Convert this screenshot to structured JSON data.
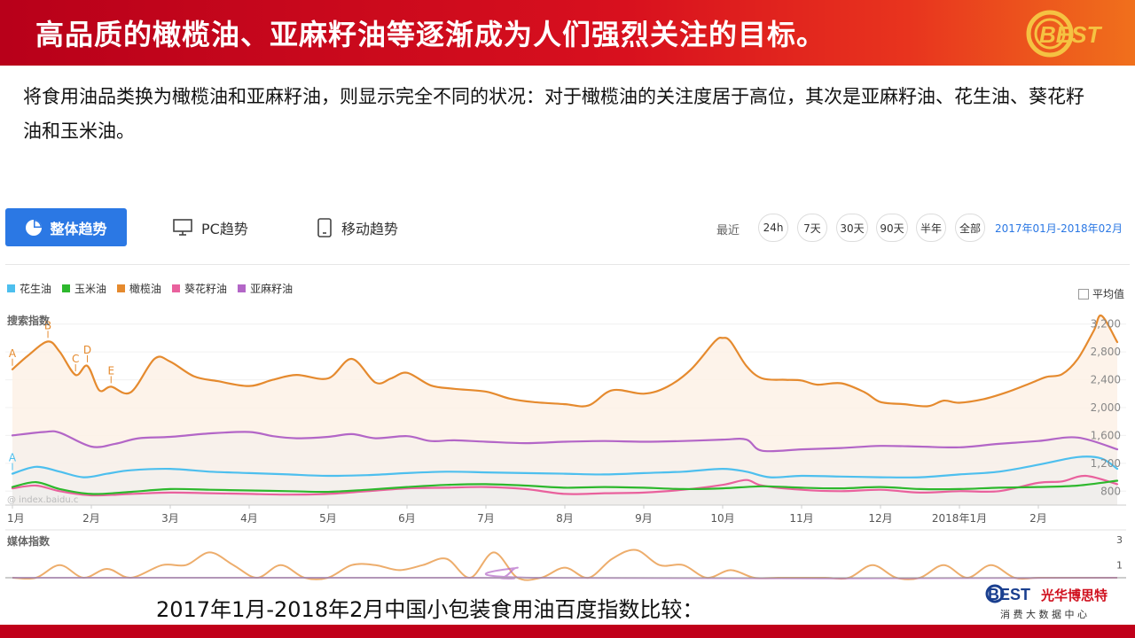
{
  "header": {
    "title": "高品质的橄榄油、亚麻籽油等逐渐成为人们强烈关注的目标。",
    "logo_text": "BEST"
  },
  "intro": {
    "text": "将食用油品类换为橄榄油和亚麻籽油，则显示完全不同的状况：对于橄榄油的关注度居于高位，其次是亚麻籽油、花生油、葵花籽油和玉米油。"
  },
  "tabs": {
    "overall": "整体趋势",
    "pc": "PC趋势",
    "mobile": "移动趋势"
  },
  "range": {
    "label": "最近",
    "options": [
      "24h",
      "7天",
      "30天",
      "90天",
      "半年",
      "全部"
    ],
    "date_range": "2017年01月-2018年02月"
  },
  "avg_toggle": "平均值",
  "caption": "2017年1月-2018年2月中国小包装食用油百度指数比较：",
  "footer": {
    "logo_text": "BEST",
    "company_name": "光华博思特",
    "company_sub": "消 费 大 数 据 中 心"
  },
  "colors": {
    "peanut": "#4dbfee",
    "corn": "#2db82d",
    "olive": "#e58a2e",
    "sunflower": "#e9619d",
    "linseed": "#b366c7",
    "accent": "#2b78e4"
  },
  "chart_data": {
    "type": "line",
    "main_panel_label": "搜索指数",
    "media_panel_label": "媒体指数",
    "watermark": "@ index.baidu.c",
    "x_labels": [
      "1月",
      "2月",
      "3月",
      "4月",
      "5月",
      "6月",
      "7月",
      "8月",
      "9月",
      "10月",
      "11月",
      "12月",
      "2018年1月",
      "2月"
    ],
    "ylim": [
      600,
      3400
    ],
    "yticks": [
      800,
      1200,
      1600,
      2000,
      2400,
      2800,
      3200
    ],
    "media_ylim": [
      0,
      3.5
    ],
    "media_yticks": [
      1,
      3
    ],
    "annotations": [
      {
        "label": "A",
        "series": "橄榄油",
        "x": 0.0
      },
      {
        "label": "B",
        "series": "橄榄油",
        "x": 0.45
      },
      {
        "label": "C",
        "series": "橄榄油",
        "x": 0.8
      },
      {
        "label": "D",
        "series": "橄榄油",
        "x": 0.95
      },
      {
        "label": "E",
        "series": "橄榄油",
        "x": 1.25
      },
      {
        "label": "A",
        "series": "花生油",
        "x": 0.0
      }
    ],
    "series": [
      {
        "name": "花生油",
        "color_key": "peanut",
        "x": [
          0,
          0.3,
          0.6,
          0.9,
          1.2,
          1.5,
          2,
          2.5,
          3,
          3.5,
          4,
          4.5,
          5,
          5.5,
          6,
          6.5,
          7,
          7.5,
          8,
          8.5,
          9,
          9.3,
          9.6,
          10,
          10.5,
          11,
          11.5,
          12,
          12.5,
          13,
          13.5,
          13.8,
          14
        ],
        "values": [
          1050,
          1150,
          1080,
          1000,
          1050,
          1100,
          1120,
          1080,
          1060,
          1040,
          1020,
          1030,
          1060,
          1080,
          1070,
          1060,
          1050,
          1040,
          1060,
          1080,
          1120,
          1080,
          1000,
          1020,
          1010,
          1000,
          1000,
          1040,
          1080,
          1180,
          1290,
          1270,
          1120
        ]
      },
      {
        "name": "玉米油",
        "color_key": "corn",
        "x": [
          0,
          0.3,
          0.6,
          1,
          1.5,
          2,
          2.5,
          3,
          3.5,
          4,
          4.5,
          5,
          5.5,
          6,
          6.5,
          7,
          7.5,
          8,
          8.5,
          9,
          9.5,
          10,
          10.5,
          11,
          11.5,
          12,
          12.5,
          13,
          13.5,
          14
        ],
        "values": [
          860,
          930,
          830,
          760,
          790,
          830,
          820,
          810,
          800,
          790,
          820,
          860,
          890,
          900,
          880,
          850,
          860,
          850,
          830,
          840,
          870,
          850,
          840,
          860,
          830,
          830,
          850,
          860,
          880,
          950
        ]
      },
      {
        "name": "橄榄油",
        "color_key": "olive",
        "x": [
          0,
          0.2,
          0.45,
          0.6,
          0.8,
          0.95,
          1.1,
          1.25,
          1.5,
          1.8,
          2.0,
          2.3,
          2.6,
          3.0,
          3.3,
          3.6,
          4.0,
          4.3,
          4.6,
          4.8,
          5.0,
          5.3,
          5.6,
          6.0,
          6.3,
          6.6,
          7.0,
          7.3,
          7.6,
          8.0,
          8.3,
          8.6,
          8.9,
          9.0,
          9.1,
          9.3,
          9.5,
          9.8,
          10.0,
          10.2,
          10.5,
          10.8,
          11.0,
          11.3,
          11.6,
          11.8,
          12.0,
          12.3,
          12.6,
          12.9,
          13.1,
          13.3,
          13.5,
          13.7,
          13.8,
          14.0
        ],
        "values": [
          2550,
          2750,
          2950,
          2800,
          2470,
          2600,
          2250,
          2300,
          2220,
          2700,
          2660,
          2450,
          2380,
          2310,
          2400,
          2470,
          2420,
          2700,
          2360,
          2420,
          2500,
          2320,
          2270,
          2230,
          2130,
          2080,
          2050,
          2030,
          2250,
          2200,
          2300,
          2550,
          2950,
          3000,
          2950,
          2600,
          2420,
          2400,
          2390,
          2330,
          2350,
          2220,
          2080,
          2050,
          2020,
          2100,
          2070,
          2120,
          2220,
          2350,
          2440,
          2480,
          2700,
          3100,
          3320,
          2940
        ]
      },
      {
        "name": "葵花籽油",
        "color_key": "sunflower",
        "x": [
          0,
          0.3,
          0.6,
          1,
          1.5,
          2,
          2.5,
          3,
          3.5,
          4,
          4.5,
          5,
          5.5,
          6,
          6.5,
          7,
          7.5,
          8,
          8.5,
          9,
          9.3,
          9.5,
          10,
          10.5,
          11,
          11.5,
          12,
          12.5,
          13,
          13.3,
          13.6,
          14
        ],
        "values": [
          840,
          880,
          800,
          740,
          760,
          780,
          770,
          760,
          750,
          760,
          800,
          840,
          850,
          860,
          830,
          760,
          770,
          780,
          820,
          890,
          960,
          880,
          820,
          800,
          820,
          780,
          800,
          800,
          920,
          940,
          1020,
          900
        ]
      },
      {
        "name": "亚麻籽油",
        "color_key": "linseed",
        "x": [
          0,
          0.4,
          0.6,
          1,
          1.3,
          1.6,
          2,
          2.5,
          3,
          3.3,
          3.6,
          4,
          4.3,
          4.6,
          5,
          5.3,
          5.6,
          6,
          6.5,
          7,
          7.5,
          8,
          8.5,
          9,
          9.3,
          9.5,
          10,
          10.5,
          11,
          11.5,
          12,
          12.5,
          13,
          13.5,
          14
        ],
        "values": [
          1600,
          1650,
          1640,
          1440,
          1480,
          1560,
          1580,
          1630,
          1650,
          1590,
          1560,
          1580,
          1620,
          1560,
          1590,
          1520,
          1530,
          1510,
          1490,
          1510,
          1520,
          1510,
          1520,
          1540,
          1540,
          1380,
          1400,
          1420,
          1450,
          1440,
          1430,
          1480,
          1520,
          1570,
          1400
        ]
      }
    ],
    "media_series": [
      {
        "name": "橄榄油",
        "color_key": "olive",
        "x": [
          0,
          0.3,
          0.6,
          0.9,
          1.2,
          1.5,
          1.9,
          2.2,
          2.5,
          2.8,
          3.1,
          3.4,
          3.7,
          4.0,
          4.3,
          4.6,
          4.9,
          5.2,
          5.5,
          5.8,
          6.1,
          6.4,
          6.7,
          7.0,
          7.3,
          7.6,
          7.9,
          8.2,
          8.5,
          8.8,
          9.1,
          9.4,
          9.7,
          10.0,
          10.3,
          10.6,
          10.9,
          11.2,
          11.5,
          11.8,
          12.1,
          12.4,
          12.7,
          13.0,
          13.3,
          13.6,
          14.0
        ],
        "values": [
          0,
          0,
          1,
          0,
          0.7,
          0,
          1,
          1,
          2,
          1,
          0,
          1,
          0,
          0,
          1,
          1,
          0.6,
          1,
          1.5,
          0,
          2,
          0,
          0,
          0.8,
          0,
          1.5,
          2.2,
          1,
          1,
          0,
          0.6,
          0,
          0,
          0,
          0,
          0,
          1,
          0,
          0,
          1,
          0,
          1,
          0,
          0,
          0,
          0,
          0
        ]
      },
      {
        "name": "亚麻籽油",
        "color_key": "linseed",
        "x": [
          0,
          5.8,
          6.2,
          6.4,
          6.6,
          14.0
        ],
        "values": [
          0,
          0,
          0,
          0.8,
          0,
          0
        ]
      }
    ]
  }
}
